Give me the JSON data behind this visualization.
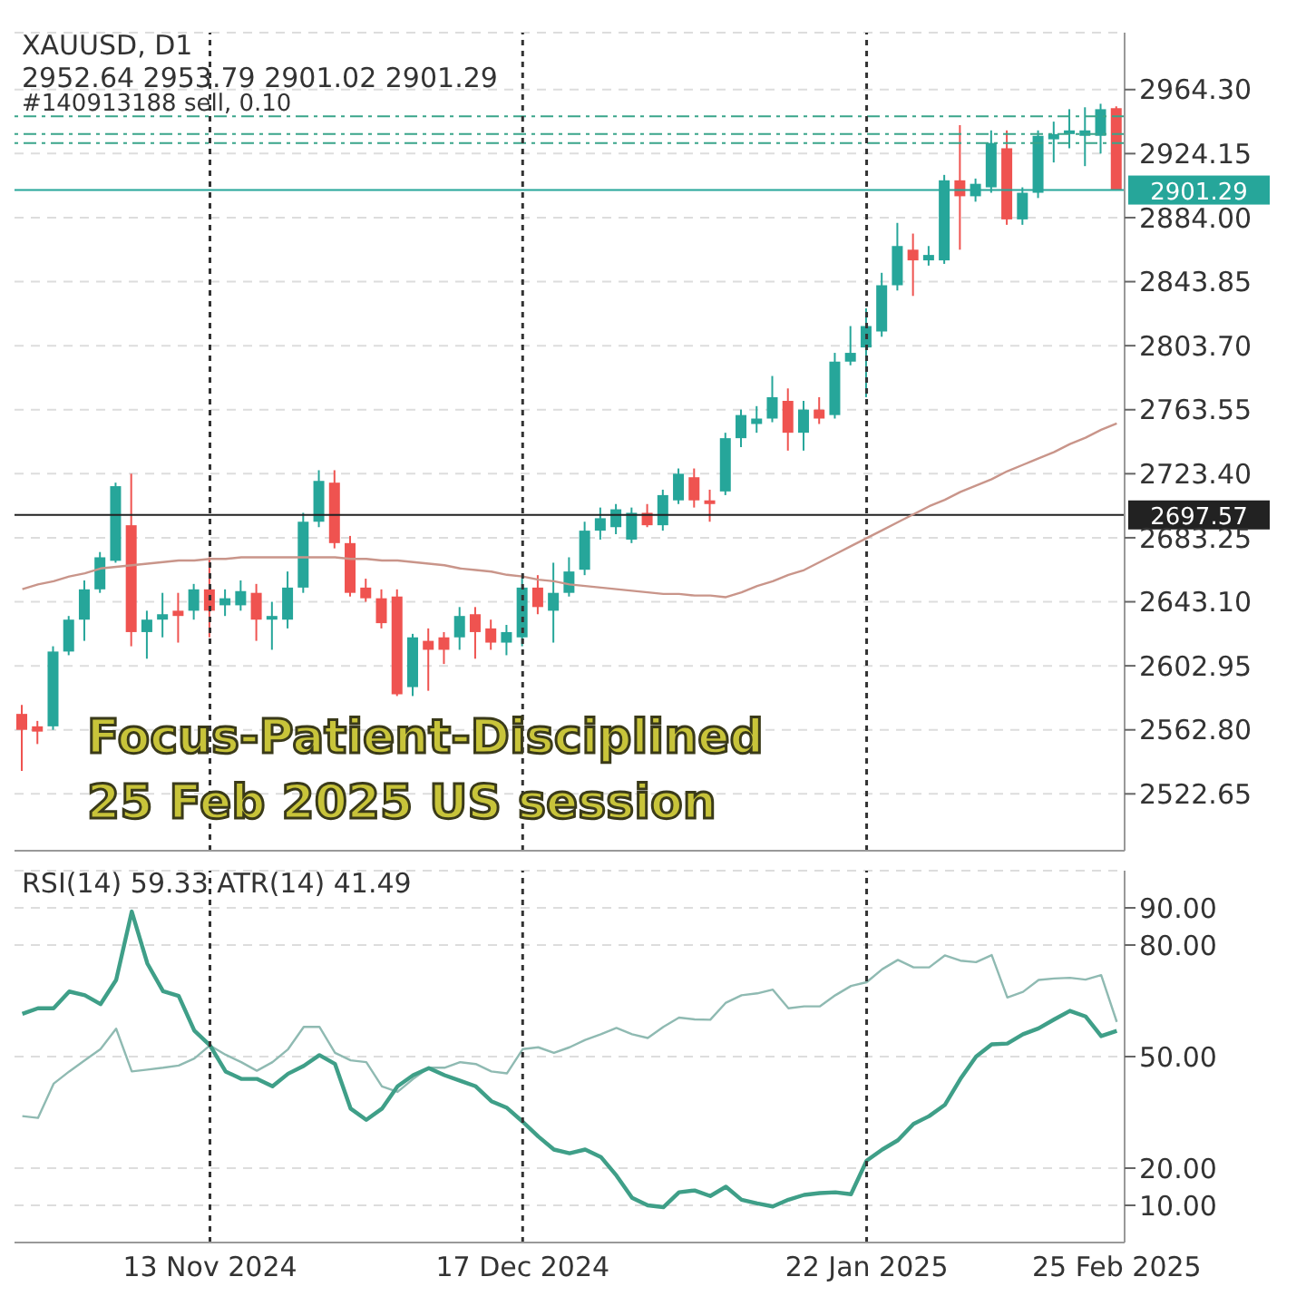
{
  "chart_data": [
    {
      "type": "candlestick",
      "title": "XAUUSD, D1",
      "subtitle": "2952.64 2953.79 2901.02 2901.29",
      "annotations": [
        "Focus-Patient-Disciplined",
        "25 Feb 2025 US session"
      ],
      "categories": [
        null,
        null,
        null,
        null,
        null,
        null,
        null,
        null,
        null,
        null,
        null,
        null,
        "13 Nov 2024",
        null,
        null,
        null,
        null,
        null,
        null,
        null,
        null,
        null,
        null,
        null,
        null,
        null,
        null,
        null,
        null,
        null,
        null,
        null,
        "17 Dec 2024",
        null,
        null,
        null,
        null,
        null,
        null,
        null,
        null,
        null,
        null,
        null,
        null,
        null,
        null,
        null,
        null,
        null,
        null,
        null,
        null,
        null,
        "22 Jan 2025",
        null,
        null,
        null,
        null,
        null,
        null,
        null,
        null,
        null,
        null,
        null,
        null,
        null,
        null,
        null,
        "25 Feb 2025"
      ],
      "ohlc": [
        [
          2572.8,
          2578.4,
          2537.1,
          2562.8
        ],
        [
          2565.0,
          2568.4,
          2553.9,
          2561.7
        ],
        [
          2565.0,
          2615.2,
          2562.8,
          2611.9
        ],
        [
          2611.9,
          2634.2,
          2609.6,
          2631.9
        ],
        [
          2631.9,
          2656.5,
          2618.6,
          2650.9
        ],
        [
          2650.9,
          2674.3,
          2648.7,
          2671.0
        ],
        [
          2668.8,
          2717.8,
          2667.6,
          2715.6
        ],
        [
          2691.1,
          2723.4,
          2615.2,
          2624.1
        ],
        [
          2624.1,
          2637.5,
          2607.4,
          2631.9
        ],
        [
          2631.9,
          2648.7,
          2620.8,
          2635.3
        ],
        [
          2637.5,
          2648.7,
          2617.5,
          2634.2
        ],
        [
          2637.5,
          2654.3,
          2631.9,
          2650.9
        ],
        [
          2650.9,
          2671.0,
          2620.8,
          2637.5
        ],
        [
          2640.9,
          2650.9,
          2634.2,
          2645.3
        ],
        [
          2640.9,
          2656.5,
          2637.5,
          2649.8
        ],
        [
          2648.7,
          2654.3,
          2618.6,
          2631.9
        ],
        [
          2631.9,
          2643.1,
          2613.0,
          2634.2
        ],
        [
          2631.9,
          2662.1,
          2626.4,
          2652.0
        ],
        [
          2652.0,
          2698.9,
          2648.7,
          2693.3
        ],
        [
          2693.3,
          2725.6,
          2689.9,
          2718.9
        ],
        [
          2717.8,
          2725.6,
          2676.6,
          2679.9
        ],
        [
          2679.9,
          2684.4,
          2646.4,
          2648.7
        ],
        [
          2652.0,
          2657.6,
          2643.1,
          2645.3
        ],
        [
          2645.3,
          2650.9,
          2626.4,
          2629.7
        ],
        [
          2646.4,
          2650.9,
          2584.0,
          2585.1
        ],
        [
          2589.6,
          2623.0,
          2584.0,
          2620.8
        ],
        [
          2618.6,
          2626.4,
          2587.3,
          2613.0
        ],
        [
          2620.8,
          2624.1,
          2604.1,
          2613.0
        ],
        [
          2620.8,
          2639.8,
          2613.0,
          2634.2
        ],
        [
          2635.3,
          2639.8,
          2607.4,
          2624.1
        ],
        [
          2626.4,
          2631.9,
          2613.0,
          2617.5
        ],
        [
          2617.5,
          2628.6,
          2609.6,
          2624.1
        ],
        [
          2620.8,
          2657.6,
          2615.2,
          2652.0
        ],
        [
          2652.0,
          2659.8,
          2635.3,
          2639.8
        ],
        [
          2637.5,
          2667.6,
          2617.5,
          2648.7
        ],
        [
          2648.7,
          2671.0,
          2646.4,
          2662.1
        ],
        [
          2663.2,
          2693.3,
          2659.8,
          2687.7
        ],
        [
          2687.7,
          2702.2,
          2682.1,
          2695.5
        ],
        [
          2689.9,
          2704.4,
          2685.5,
          2701.1
        ],
        [
          2682.1,
          2702.2,
          2679.9,
          2698.9
        ],
        [
          2698.9,
          2704.4,
          2689.9,
          2691.1
        ],
        [
          2691.1,
          2713.4,
          2687.7,
          2710.0
        ],
        [
          2706.7,
          2726.7,
          2704.4,
          2723.4
        ],
        [
          2721.2,
          2726.7,
          2702.2,
          2706.7
        ],
        [
          2706.7,
          2713.4,
          2693.3,
          2704.4
        ],
        [
          2712.3,
          2749.1,
          2710.0,
          2745.7
        ],
        [
          2745.7,
          2763.6,
          2740.1,
          2760.2
        ],
        [
          2754.6,
          2765.8,
          2749.1,
          2758.0
        ],
        [
          2758.0,
          2784.7,
          2755.7,
          2771.4
        ],
        [
          2769.1,
          2776.9,
          2737.9,
          2749.1
        ],
        [
          2749.1,
          2769.1,
          2737.9,
          2763.6
        ],
        [
          2763.6,
          2771.4,
          2754.6,
          2758.0
        ],
        [
          2760.2,
          2799.2,
          2758.0,
          2793.7
        ],
        [
          2793.7,
          2816.0,
          2791.4,
          2799.2
        ],
        [
          2802.6,
          2827.1,
          2771.4,
          2816.0
        ],
        [
          2812.6,
          2849.4,
          2809.3,
          2841.6
        ],
        [
          2841.6,
          2880.7,
          2838.3,
          2866.2
        ],
        [
          2863.9,
          2874.0,
          2834.9,
          2857.2
        ],
        [
          2857.2,
          2866.2,
          2853.9,
          2860.6
        ],
        [
          2857.2,
          2910.8,
          2855.0,
          2907.4
        ],
        [
          2907.4,
          2942.0,
          2863.9,
          2897.4
        ],
        [
          2897.4,
          2908.5,
          2894.0,
          2905.2
        ],
        [
          2903.0,
          2938.7,
          2899.6,
          2930.8
        ],
        [
          2927.5,
          2938.7,
          2879.5,
          2882.9
        ],
        [
          2882.9,
          2903.0,
          2879.5,
          2899.6
        ],
        [
          2899.6,
          2938.7,
          2896.3,
          2935.3
        ],
        [
          2933.1,
          2944.2,
          2918.6,
          2936.4
        ],
        [
          2936.4,
          2952.0,
          2927.5,
          2938.7
        ],
        [
          2935.3,
          2953.2,
          2916.3,
          2938.7
        ],
        [
          2935.3,
          2955.4,
          2924.2,
          2952.0
        ],
        [
          2952.64,
          2953.79,
          2901.02,
          2901.29
        ]
      ],
      "colors": [
        "#ef5350",
        "#ef5350",
        "#26a69a",
        "#26a69a",
        "#26a69a",
        "#26a69a",
        "#26a69a",
        "#ef5350",
        "#26a69a",
        "#26a69a",
        "#ef5350",
        "#26a69a",
        "#ef5350",
        "#26a69a",
        "#26a69a",
        "#ef5350",
        "#26a69a",
        "#26a69a",
        "#26a69a",
        "#26a69a",
        "#ef5350",
        "#ef5350",
        "#ef5350",
        "#ef5350",
        "#ef5350",
        "#26a69a",
        "#ef5350",
        "#ef5350",
        "#26a69a",
        "#ef5350",
        "#ef5350",
        "#26a69a",
        "#26a69a",
        "#ef5350",
        "#26a69a",
        "#26a69a",
        "#26a69a",
        "#26a69a",
        "#26a69a",
        "#26a69a",
        "#ef5350",
        "#26a69a",
        "#26a69a",
        "#ef5350",
        "#ef5350",
        "#26a69a",
        "#26a69a",
        "#26a69a",
        "#26a69a",
        "#ef5350",
        "#26a69a",
        "#ef5350",
        "#26a69a",
        "#26a69a",
        "#26a69a",
        "#26a69a",
        "#26a69a",
        "#ef5350",
        "#26a69a",
        "#26a69a",
        "#ef5350",
        "#26a69a",
        "#26a69a",
        "#ef5350",
        "#26a69a",
        "#26a69a",
        "#26a69a",
        "#26a69a",
        "#26a69a",
        "#26a69a",
        "#ef5350"
      ],
      "series": [
        {
          "type": "line",
          "color": "#c9958a",
          "values": [
            2651,
            2654,
            2656,
            2659,
            2661,
            2664,
            2665,
            2666,
            2667,
            2668,
            2669,
            2669,
            2670,
            2670,
            2671,
            2671,
            2671,
            2671,
            2671,
            2671,
            2671,
            2670,
            2670,
            2669,
            2669,
            2668,
            2667,
            2666,
            2664,
            2663,
            2662,
            2660,
            2659,
            2657,
            2656,
            2654,
            2653,
            2652,
            2651,
            2650,
            2649,
            2648,
            2648,
            2647,
            2647,
            2646,
            2649,
            2653,
            2656,
            2660,
            2663,
            2668,
            2673,
            2678,
            2683,
            2688,
            2693,
            2698,
            2703,
            2707,
            2712,
            2716,
            2720,
            2725,
            2729,
            2733,
            2737,
            2742,
            2746,
            2751,
            2755
          ]
        }
      ],
      "ylim": [
        2487,
        3000
      ],
      "yticks": [
        {
          "value": 2522.65,
          "label": "2522.65"
        },
        {
          "value": 2562.8,
          "label": "2562.80"
        },
        {
          "value": 2602.95,
          "label": "2602.95"
        },
        {
          "value": 2643.1,
          "label": "2643.10"
        },
        {
          "value": 2683.25,
          "label": "2683.25"
        },
        {
          "value": 2723.4,
          "label": "2723.40"
        },
        {
          "value": 2763.55,
          "label": "2763.55"
        },
        {
          "value": 2803.7,
          "label": "2803.70"
        },
        {
          "value": 2843.85,
          "label": "2843.85"
        },
        {
          "value": 2884,
          "label": "2884.00"
        },
        {
          "value": 2924.15,
          "label": "2924.15"
        },
        {
          "value": 2964.3,
          "label": "2964.30"
        }
      ],
      "ref_lines": [
        {
          "axis": "y",
          "value": 2901.29,
          "label": "2901.29",
          "color": "#26a69a"
        },
        {
          "axis": "y",
          "value": 2697.57,
          "label": "2697.57",
          "color": "#222222"
        },
        {
          "axis": "y",
          "value": 2947.6,
          "label": "#140913188 sell, 0.10",
          "color": "#3aa58a",
          "line_style": "dashed"
        },
        {
          "axis": "y",
          "value": 2936.4,
          "color": "#3aa58a",
          "line_style": "dashed"
        },
        {
          "axis": "y",
          "value": 2930.8,
          "color": "#3aa58a",
          "line_style": "dashed"
        },
        {
          "axis": "x",
          "value": "13 Nov 2024",
          "color": "#333333",
          "line_style": "dotted"
        },
        {
          "axis": "x",
          "value": "17 Dec 2024",
          "color": "#333333",
          "line_style": "dotted"
        },
        {
          "axis": "x",
          "value": "22 Jan 2025",
          "color": "#333333",
          "line_style": "dotted"
        }
      ],
      "grid": "y",
      "tick_labels": "y"
    },
    {
      "type": "line",
      "title": "RSI(14) 59.33 ATR(14) 41.49",
      "categories": [
        null,
        null,
        null,
        null,
        null,
        null,
        null,
        null,
        null,
        null,
        null,
        null,
        "13 Nov 2024",
        null,
        null,
        null,
        null,
        null,
        null,
        null,
        null,
        null,
        null,
        null,
        null,
        null,
        null,
        null,
        null,
        null,
        null,
        null,
        "17 Dec 2024",
        null,
        null,
        null,
        null,
        null,
        null,
        null,
        null,
        null,
        null,
        null,
        null,
        null,
        null,
        null,
        null,
        null,
        null,
        null,
        null,
        null,
        "22 Jan 2025",
        null,
        null,
        null,
        null,
        null,
        null,
        null,
        null,
        null,
        null,
        null,
        null,
        null,
        null,
        null,
        "25 Feb 2025"
      ],
      "series": [
        {
          "color": "#8fbab2",
          "values": [
            34,
            33.5,
            42.7,
            46,
            49,
            52,
            57.5,
            46,
            46.5,
            47,
            47.6,
            49.5,
            53,
            50.5,
            48.5,
            46.2,
            48.5,
            52,
            58,
            58,
            51,
            49,
            48.5,
            42,
            40.5,
            44,
            47,
            47,
            48.5,
            48,
            46,
            45.5,
            52,
            52.5,
            51,
            52.5,
            54.5,
            56,
            57.7,
            56,
            55,
            58,
            60.5,
            60,
            59.9,
            64.5,
            66.5,
            67,
            68,
            63,
            63.5,
            63.5,
            66.5,
            69,
            70,
            73.5,
            76,
            74,
            74,
            77.2,
            75.8,
            75.4,
            77.3,
            65.9,
            67.4,
            70.6,
            71,
            71.2,
            70.7,
            71.9,
            59.33
          ]
        },
        {
          "color": "#3f9f88",
          "values": [
            61.5,
            63,
            63,
            67.5,
            66.5,
            64.1,
            70.6,
            89,
            75,
            67.6,
            66.3,
            57,
            53,
            46,
            44,
            44,
            42,
            45.4,
            47.5,
            50.4,
            48,
            36,
            33,
            36,
            42,
            45,
            46.9,
            45,
            43.5,
            42,
            38,
            36.2,
            32.5,
            28.5,
            25,
            24,
            25,
            23,
            18,
            12,
            10,
            9.5,
            13.5,
            14,
            12.5,
            15,
            11.5,
            10.5,
            9.7,
            11.5,
            12.8,
            13.3,
            13.5,
            13,
            22,
            25,
            27.5,
            31.9,
            34,
            37,
            44,
            50,
            53.3,
            53.5,
            56,
            57.6,
            60,
            62.3,
            60.8,
            55.5,
            56.9
          ]
        }
      ],
      "ylim": [
        0,
        100
      ],
      "yticks": [
        {
          "value": 10,
          "label": "10.00"
        },
        {
          "value": 20,
          "label": "20.00"
        },
        {
          "value": 50,
          "label": "50.00"
        },
        {
          "value": 80,
          "label": "80.00"
        },
        {
          "value": 90,
          "label": "90.00"
        }
      ],
      "ref_lines": [
        {
          "axis": "x",
          "value": "13 Nov 2024",
          "color": "#333333",
          "line_style": "dotted"
        },
        {
          "axis": "x",
          "value": "17 Dec 2024",
          "color": "#333333",
          "line_style": "dotted"
        },
        {
          "axis": "x",
          "value": "22 Jan 2025",
          "color": "#333333",
          "line_style": "dotted"
        }
      ],
      "grid": "y"
    }
  ]
}
